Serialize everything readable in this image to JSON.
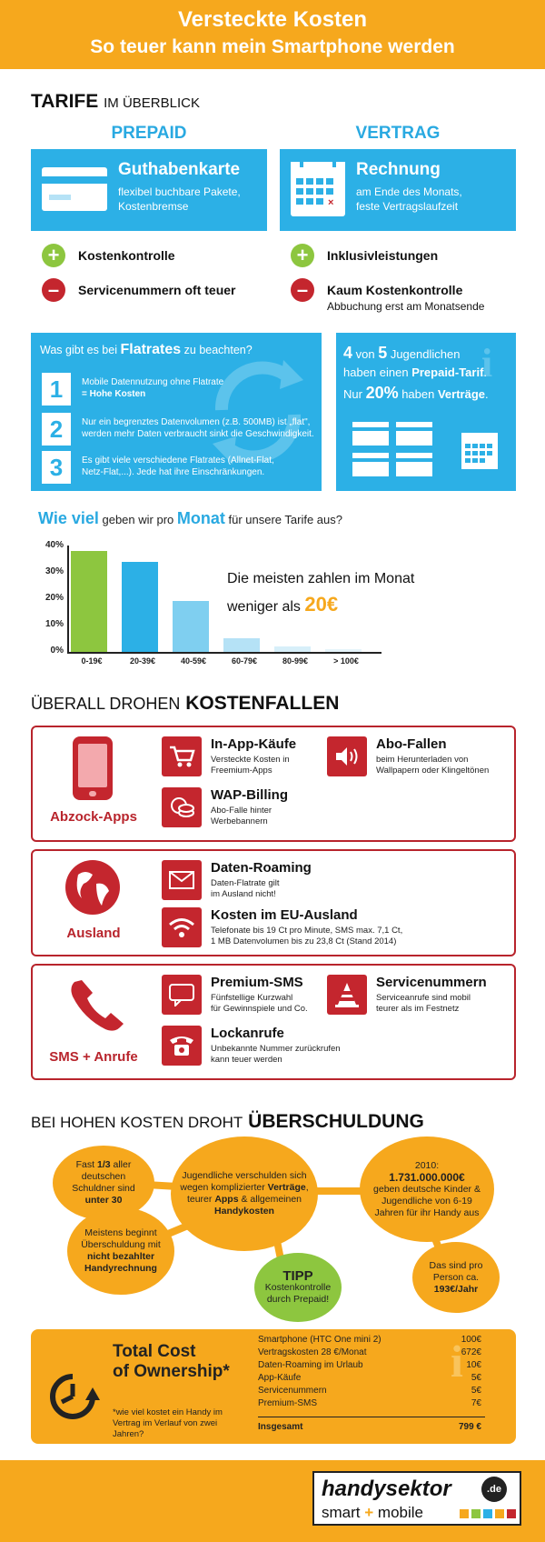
{
  "header": {
    "title": "Versteckte Kosten",
    "subtitle": "So teuer kann mein Smartphone werden"
  },
  "tarife": {
    "heading_big": "TARIFE",
    "heading_small": "IM ÜBERBLICK",
    "prepaid": {
      "label": "PREPAID",
      "card_title": "Guthabenkarte",
      "card_line1": "flexibel buchbare Pakete,",
      "card_line2": "Kostenbremse",
      "plus_label": "Kostenkontrolle",
      "minus_label": "Servicenummern oft teuer"
    },
    "vertrag": {
      "label": "VERTRAG",
      "card_title": "Rechnung",
      "card_line1": "am Ende des Monats,",
      "card_line2": "feste Vertragslaufzeit",
      "plus_label": "Inklusivleistungen",
      "minus_label": "Kaum Kostenkontrolle",
      "minus_note": "Abbuchung erst am Monatsende"
    }
  },
  "flatrates": {
    "q_pre": "Was gibt es bei ",
    "q_bold": "Flatrates",
    "q_post": " zu beachten?",
    "items": [
      {
        "num": "1",
        "line1": "Mobile Datennutzung ohne Flatrate",
        "line2": "= Hohe Kosten"
      },
      {
        "num": "2",
        "line1": "Nur ein begrenztes Datenvolumen (z.B. 500MB) ist „flat\",",
        "line2": "werden mehr Daten verbraucht sinkt die Geschwindigkeit."
      },
      {
        "num": "3",
        "line1": "Es gibt viele verschiedene Flatrates (Allnet-Flat,",
        "line2": "Netz-Flat,...). Jede hat ihre Einschränkungen."
      }
    ]
  },
  "jugend": {
    "line1_a": "4",
    "line1_b": " von ",
    "line1_c": "5",
    "line1_d": " Jugendlichen",
    "line2_a": "haben einen ",
    "line2_b": "Prepaid-Tarif",
    "line2_c": ".",
    "line3_a": "Nur ",
    "line3_b": "20%",
    "line3_c": " haben ",
    "line3_d": "Verträge",
    "line3_e": "."
  },
  "chart_data": {
    "type": "bar",
    "title_a": "Wie viel",
    "title_b": " geben wir pro ",
    "title_c": "Monat",
    "title_d": " für unsere Tarife aus?",
    "categories": [
      "0-19€",
      "20-39€",
      "40-59€",
      "60-79€",
      "80-99€",
      "> 100€"
    ],
    "values": [
      38,
      34,
      19,
      5,
      2,
      1
    ],
    "yticks": [
      "40%",
      "30%",
      "20%",
      "10%",
      "0%"
    ],
    "ylim": [
      0,
      40
    ],
    "colors": [
      "#8dc63f",
      "#2cb0e6",
      "#7fcff0",
      "#b5e2f6",
      "#d7eff9",
      "#e6f4fa"
    ],
    "annotation_line1": "Die meisten zahlen im Monat",
    "annotation_line2": "weniger als ",
    "annotation_value": "20€"
  },
  "kostenfallen": {
    "heading_small": "ÜBERALL DROHEN",
    "heading_big": "KOSTENFALLEN",
    "groups": [
      {
        "label": "Abzock-Apps",
        "items": [
          {
            "title": "In-App-Käufe",
            "desc1": "Versteckte Kosten in",
            "desc2": "Freemium-Apps"
          },
          {
            "title": "Abo-Fallen",
            "desc1": "beim Herunterladen von",
            "desc2": "Wallpapern oder Klingeltönen"
          },
          {
            "title": "WAP-Billing",
            "desc1": "Abo-Falle hinter",
            "desc2": "Werbebannern"
          }
        ]
      },
      {
        "label": "Ausland",
        "items": [
          {
            "title": "Daten-Roaming",
            "desc1": "Daten-Flatrate gilt",
            "desc2": "im Ausland nicht!"
          },
          {
            "title": "Kosten im EU-Ausland",
            "desc1": "Telefonate bis 19 Ct pro Minute, SMS max. 7,1 Ct,",
            "desc2": "1 MB Datenvolumen bis zu 23,8 Ct (Stand 2014)"
          }
        ]
      },
      {
        "label": "SMS + Anrufe",
        "items": [
          {
            "title": "Premium-SMS",
            "desc1": "Fünfstellige Kurzwahl",
            "desc2": "für Gewinnspiele und Co."
          },
          {
            "title": "Servicenummern",
            "desc1": "Serviceanrufe sind mobil",
            "desc2": "teurer als im Festnetz"
          },
          {
            "title": "Lockanrufe",
            "desc1": "Unbekannte Nummer zurückrufen",
            "desc2": "kann teuer werden"
          }
        ]
      }
    ]
  },
  "schulden": {
    "heading_small": "BEI HOHEN KOSTEN DROHT",
    "heading_big": "ÜBERSCHULDUNG",
    "b1_a": "Fast ",
    "b1_b": "1/3",
    "b1_c": " aller deutschen Schuldner sind ",
    "b1_d": "unter 30",
    "b2_a": "Jugendliche verschulden sich wegen komplizierter ",
    "b2_b": "Verträge",
    "b2_c": ", teurer ",
    "b2_d": "Apps",
    "b2_e": " & allgemeinen ",
    "b2_f": "Handykosten",
    "b3_a": "2010:",
    "b3_b": "1.731.000.000€",
    "b3_c": "geben deutsche Kinder & Jugendliche von 6-19 Jahren für ihr Handy aus",
    "b4_a": "Meistens beginnt Überschuldung mit ",
    "b4_b": "nicht bezahlter Handyrechnung",
    "b5_a": "TIPP",
    "b5_b": "Kostenkontrolle durch Prepaid!",
    "b6_a": "Das sind pro Person ca.",
    "b6_b": "193€/Jahr"
  },
  "tco": {
    "title1": "Total Cost",
    "title2": "of Ownership*",
    "note": "*wie viel kostet ein Handy im Vertrag im Verlauf von zwei Jahren?",
    "rows": [
      {
        "item": "Smartphone (HTC One mini 2)",
        "value": "100€"
      },
      {
        "item": "Vertragskosten 28 €/Monat",
        "value": "672€"
      },
      {
        "item": "Daten-Roaming im Urlaub",
        "value": "10€"
      },
      {
        "item": "App-Käufe",
        "value": "5€"
      },
      {
        "item": "Servicenummern",
        "value": "5€"
      },
      {
        "item": "Premium-SMS",
        "value": "7€"
      }
    ],
    "total_label": "Insgesamt",
    "total_value": "799 €"
  },
  "logo": {
    "name": "handysektor",
    "tld": ".de",
    "tagline_a": "smart",
    "tagline_b": "mobile"
  }
}
